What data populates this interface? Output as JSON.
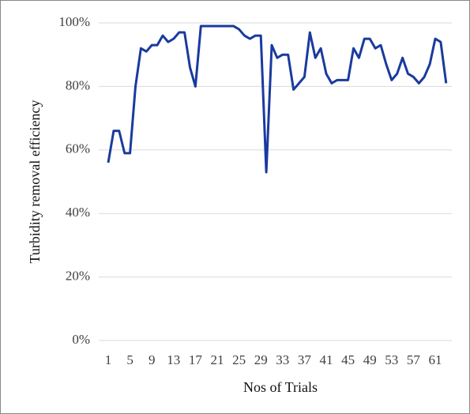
{
  "chart_data": {
    "type": "line",
    "xlabel": "Nos of Trials",
    "ylabel": "Turbidity removal efficiency",
    "categories": [
      1,
      null,
      null,
      null,
      5,
      null,
      null,
      null,
      9,
      null,
      null,
      null,
      13,
      null,
      null,
      null,
      17,
      null,
      null,
      null,
      21,
      null,
      null,
      null,
      25,
      null,
      null,
      null,
      29,
      null,
      null,
      null,
      33,
      null,
      null,
      null,
      37,
      null,
      null,
      null,
      41,
      null,
      null,
      null,
      45,
      null,
      null,
      null,
      49,
      null,
      null,
      null,
      53,
      null,
      null,
      null,
      57,
      null,
      null,
      null,
      61,
      null,
      null
    ],
    "series": [
      {
        "name": "Turbidity removal efficiency",
        "color": "#1a3a9e",
        "values": [
          56,
          66,
          66,
          59,
          59,
          80,
          92,
          91,
          93,
          93,
          96,
          94,
          95,
          97,
          97,
          86,
          80,
          99,
          99,
          99,
          99,
          99,
          99,
          99,
          98,
          96,
          95,
          96,
          96,
          53,
          93,
          89,
          90,
          90,
          79,
          81,
          83,
          97,
          89,
          92,
          84,
          81,
          82,
          82,
          82,
          92,
          89,
          95,
          95,
          92,
          93,
          87,
          82,
          84,
          89,
          84,
          83,
          81,
          83,
          87,
          95,
          94,
          81
        ]
      }
    ],
    "ylim": [
      0,
      100
    ],
    "yticks": [
      {
        "value": 0,
        "label": "0%"
      },
      {
        "value": 20,
        "label": "20%"
      },
      {
        "value": 40,
        "label": "40%"
      },
      {
        "value": 60,
        "label": "60%"
      },
      {
        "value": 80,
        "label": "80%"
      },
      {
        "value": 100,
        "label": "100%"
      }
    ],
    "grid": true
  }
}
